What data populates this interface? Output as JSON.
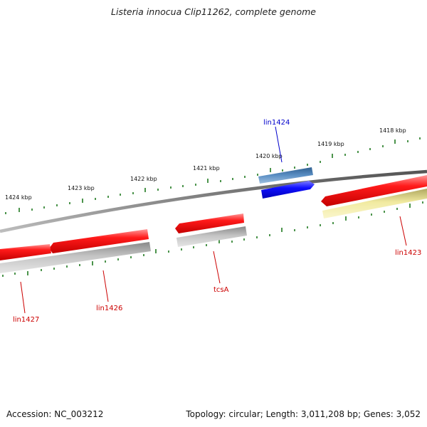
{
  "title": "Listeria innocua Clip11262, complete genome",
  "footer": {
    "accession": "Accession: NC_003212",
    "summary": "Topology: circular; Length: 3,011,208 bp; Genes: 3,052"
  },
  "scale_labels": [
    "1424 kbp",
    "1423 kbp",
    "1422 kbp",
    "1421 kbp",
    "1420 kbp",
    "1419 kbp",
    "1418 kbp"
  ],
  "genes": [
    {
      "name": "lin1424",
      "strand": "forward",
      "color": "#0000cc"
    },
    {
      "name": "lin1423",
      "strand": "reverse",
      "color": "#cc0000"
    },
    {
      "name": "tcsA",
      "strand": "reverse",
      "color": "#cc0000"
    },
    {
      "name": "lin1426",
      "strand": "reverse",
      "color": "#cc0000"
    },
    {
      "name": "lin1427",
      "strand": "reverse",
      "color": "#cc0000"
    }
  ],
  "colors": {
    "backbone": "#7a7a7a",
    "tick": "#1f7a1f",
    "forward_gene": "#1a1aff",
    "forward_feature": "#4a7fb5",
    "reverse_gene": "#ff0000",
    "reverse_feature_gray": "#b5b5b5",
    "reverse_feature_yellow": "#ece59a"
  }
}
